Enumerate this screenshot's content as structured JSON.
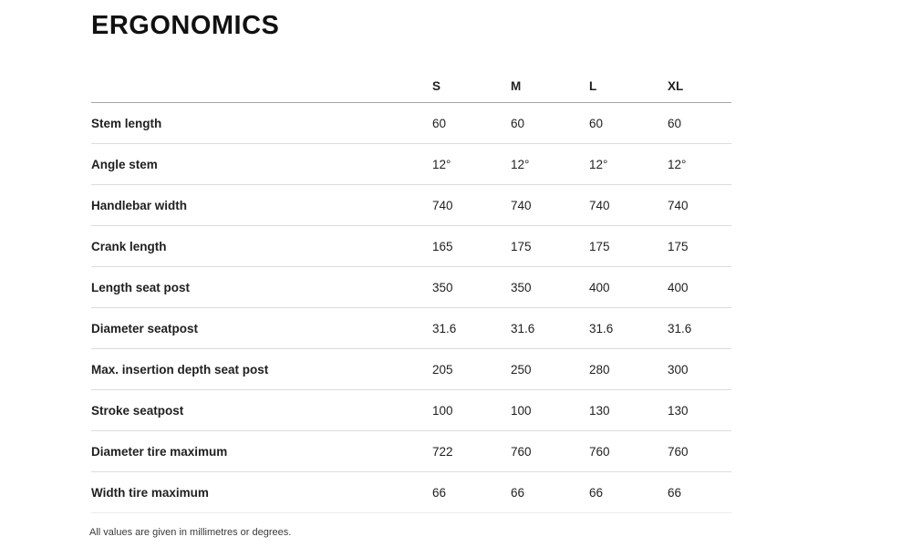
{
  "page": {
    "title": "ERGONOMICS",
    "footnote": "All values are given in millimetres or degrees."
  },
  "table": {
    "size_columns": [
      "S",
      "M",
      "L",
      "XL"
    ],
    "rows": [
      {
        "label": "Stem length",
        "values": [
          "60",
          "60",
          "60",
          "60"
        ]
      },
      {
        "label": "Angle stem",
        "values": [
          "12°",
          "12°",
          "12°",
          "12°"
        ]
      },
      {
        "label": "Handlebar width",
        "values": [
          "740",
          "740",
          "740",
          "740"
        ]
      },
      {
        "label": "Crank length",
        "values": [
          "165",
          "175",
          "175",
          "175"
        ]
      },
      {
        "label": "Length seat post",
        "values": [
          "350",
          "350",
          "400",
          "400"
        ]
      },
      {
        "label": "Diameter seatpost",
        "values": [
          "31.6",
          "31.6",
          "31.6",
          "31.6"
        ]
      },
      {
        "label": "Max. insertion depth seat post",
        "values": [
          "205",
          "250",
          "280",
          "300"
        ]
      },
      {
        "label": "Stroke seatpost",
        "values": [
          "100",
          "100",
          "130",
          "130"
        ]
      },
      {
        "label": "Diameter tire maximum",
        "values": [
          "722",
          "760",
          "760",
          "760"
        ]
      },
      {
        "label": "Width tire maximum",
        "values": [
          "66",
          "66",
          "66",
          "66"
        ]
      }
    ]
  },
  "colors": {
    "background": "#ffffff",
    "title_text": "#111111",
    "label_text": "#161616",
    "value_text": "#2e2e2e",
    "header_border": "#a6a6a6",
    "row_border": "#dcdcdc"
  }
}
